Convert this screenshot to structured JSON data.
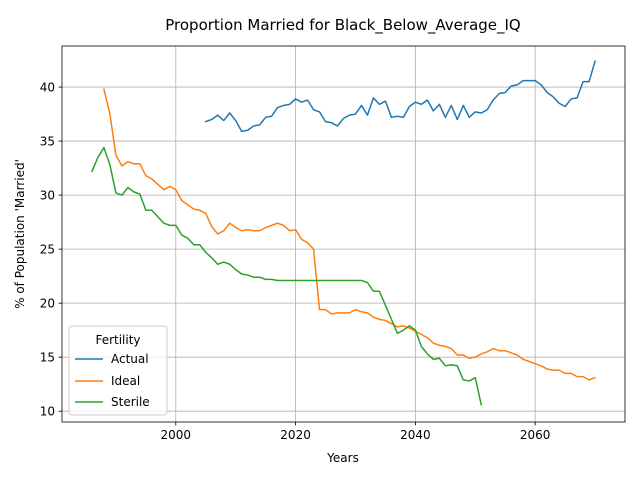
{
  "chart_data": {
    "type": "line",
    "title": "Proportion Married for Black_Below_Average_IQ",
    "xlabel": "Years",
    "ylabel": "% of Population 'Married'",
    "xlim": [
      1981,
      2075
    ],
    "ylim": [
      9.0,
      43.8
    ],
    "xticks": [
      2000,
      2020,
      2040,
      2060
    ],
    "yticks": [
      10,
      15,
      20,
      25,
      30,
      35,
      40
    ],
    "grid": true,
    "legend": {
      "title": "Fertility",
      "placement": "lower-left"
    },
    "series": [
      {
        "name": "Actual",
        "color": "#1f77b4",
        "points": [
          [
            2005,
            36.8
          ],
          [
            2006,
            37.0
          ],
          [
            2007,
            37.4
          ],
          [
            2008,
            36.9
          ],
          [
            2009,
            37.6
          ],
          [
            2010,
            36.9
          ],
          [
            2011,
            35.9
          ],
          [
            2012,
            36.0
          ],
          [
            2013,
            36.4
          ],
          [
            2014,
            36.5
          ],
          [
            2015,
            37.2
          ],
          [
            2016,
            37.3
          ],
          [
            2017,
            38.1
          ],
          [
            2018,
            38.3
          ],
          [
            2019,
            38.4
          ],
          [
            2020,
            38.9
          ],
          [
            2021,
            38.6
          ],
          [
            2022,
            38.8
          ],
          [
            2023,
            37.9
          ],
          [
            2024,
            37.7
          ],
          [
            2025,
            36.8
          ],
          [
            2026,
            36.7
          ],
          [
            2027,
            36.4
          ],
          [
            2028,
            37.1
          ],
          [
            2029,
            37.4
          ],
          [
            2030,
            37.5
          ],
          [
            2031,
            38.3
          ],
          [
            2032,
            37.4
          ],
          [
            2033,
            39.0
          ],
          [
            2034,
            38.4
          ],
          [
            2035,
            38.7
          ],
          [
            2036,
            37.2
          ],
          [
            2037,
            37.3
          ],
          [
            2038,
            37.2
          ],
          [
            2039,
            38.2
          ],
          [
            2040,
            38.6
          ],
          [
            2041,
            38.4
          ],
          [
            2042,
            38.8
          ],
          [
            2043,
            37.8
          ],
          [
            2044,
            38.4
          ],
          [
            2045,
            37.2
          ],
          [
            2046,
            38.3
          ],
          [
            2047,
            37.0
          ],
          [
            2048,
            38.3
          ],
          [
            2049,
            37.2
          ],
          [
            2050,
            37.7
          ],
          [
            2051,
            37.6
          ],
          [
            2052,
            37.9
          ],
          [
            2053,
            38.8
          ],
          [
            2054,
            39.4
          ],
          [
            2055,
            39.5
          ],
          [
            2056,
            40.1
          ],
          [
            2057,
            40.2
          ],
          [
            2058,
            40.6
          ],
          [
            2059,
            40.6
          ],
          [
            2060,
            40.6
          ],
          [
            2061,
            40.2
          ],
          [
            2062,
            39.5
          ],
          [
            2063,
            39.1
          ],
          [
            2064,
            38.5
          ],
          [
            2065,
            38.2
          ],
          [
            2066,
            38.9
          ],
          [
            2067,
            39.0
          ],
          [
            2068,
            40.5
          ],
          [
            2069,
            40.5
          ],
          [
            2070,
            42.4
          ]
        ]
      },
      {
        "name": "Ideal",
        "color": "#ff7f0e",
        "points": [
          [
            1988,
            39.8
          ],
          [
            1989,
            37.5
          ],
          [
            1990,
            33.7
          ],
          [
            1991,
            32.7
          ],
          [
            1992,
            33.1
          ],
          [
            1993,
            32.9
          ],
          [
            1994,
            32.9
          ],
          [
            1995,
            31.8
          ],
          [
            1996,
            31.5
          ],
          [
            1997,
            31.0
          ],
          [
            1998,
            30.5
          ],
          [
            1999,
            30.8
          ],
          [
            2000,
            30.5
          ],
          [
            2001,
            29.5
          ],
          [
            2002,
            29.1
          ],
          [
            2003,
            28.7
          ],
          [
            2004,
            28.6
          ],
          [
            2005,
            28.3
          ],
          [
            2006,
            27.1
          ],
          [
            2007,
            26.4
          ],
          [
            2008,
            26.7
          ],
          [
            2009,
            27.4
          ],
          [
            2010,
            27.0
          ],
          [
            2011,
            26.7
          ],
          [
            2012,
            26.8
          ],
          [
            2013,
            26.7
          ],
          [
            2014,
            26.7
          ],
          [
            2015,
            27.0
          ],
          [
            2016,
            27.2
          ],
          [
            2017,
            27.4
          ],
          [
            2018,
            27.2
          ],
          [
            2019,
            26.7
          ],
          [
            2020,
            26.8
          ],
          [
            2021,
            25.9
          ],
          [
            2022,
            25.6
          ],
          [
            2023,
            25.0
          ],
          [
            2024,
            19.4
          ],
          [
            2025,
            19.4
          ],
          [
            2026,
            19.0
          ],
          [
            2027,
            19.1
          ],
          [
            2028,
            19.1
          ],
          [
            2029,
            19.1
          ],
          [
            2030,
            19.4
          ],
          [
            2031,
            19.2
          ],
          [
            2032,
            19.1
          ],
          [
            2033,
            18.7
          ],
          [
            2034,
            18.5
          ],
          [
            2035,
            18.4
          ],
          [
            2036,
            18.1
          ],
          [
            2037,
            17.8
          ],
          [
            2038,
            17.9
          ],
          [
            2039,
            17.7
          ],
          [
            2040,
            17.4
          ],
          [
            2041,
            17.1
          ],
          [
            2042,
            16.8
          ],
          [
            2043,
            16.3
          ],
          [
            2044,
            16.1
          ],
          [
            2045,
            16.0
          ],
          [
            2046,
            15.8
          ],
          [
            2047,
            15.2
          ],
          [
            2048,
            15.2
          ],
          [
            2049,
            14.9
          ],
          [
            2050,
            15.0
          ],
          [
            2051,
            15.3
          ],
          [
            2052,
            15.5
          ],
          [
            2053,
            15.8
          ],
          [
            2054,
            15.6
          ],
          [
            2055,
            15.6
          ],
          [
            2056,
            15.4
          ],
          [
            2057,
            15.2
          ],
          [
            2058,
            14.8
          ],
          [
            2059,
            14.6
          ],
          [
            2060,
            14.4
          ],
          [
            2061,
            14.2
          ],
          [
            2062,
            13.9
          ],
          [
            2063,
            13.8
          ],
          [
            2064,
            13.8
          ],
          [
            2065,
            13.5
          ],
          [
            2066,
            13.5
          ],
          [
            2067,
            13.2
          ],
          [
            2068,
            13.2
          ],
          [
            2069,
            12.9
          ],
          [
            2070,
            13.1
          ]
        ]
      },
      {
        "name": "Sterile",
        "color": "#2ca02c",
        "points": [
          [
            1986,
            32.2
          ],
          [
            1987,
            33.5
          ],
          [
            1988,
            34.4
          ],
          [
            1989,
            32.8
          ],
          [
            1990,
            30.2
          ],
          [
            1991,
            30.0
          ],
          [
            1992,
            30.7
          ],
          [
            1993,
            30.3
          ],
          [
            1994,
            30.1
          ],
          [
            1995,
            28.6
          ],
          [
            1996,
            28.6
          ],
          [
            1997,
            28.0
          ],
          [
            1998,
            27.4
          ],
          [
            1999,
            27.2
          ],
          [
            2000,
            27.2
          ],
          [
            2001,
            26.3
          ],
          [
            2002,
            26.0
          ],
          [
            2003,
            25.4
          ],
          [
            2004,
            25.4
          ],
          [
            2005,
            24.7
          ],
          [
            2006,
            24.2
          ],
          [
            2007,
            23.6
          ],
          [
            2008,
            23.8
          ],
          [
            2009,
            23.6
          ],
          [
            2010,
            23.1
          ],
          [
            2011,
            22.7
          ],
          [
            2012,
            22.6
          ],
          [
            2013,
            22.4
          ],
          [
            2014,
            22.4
          ],
          [
            2015,
            22.2
          ],
          [
            2016,
            22.2
          ],
          [
            2017,
            22.1
          ],
          [
            2018,
            22.1
          ],
          [
            2019,
            22.1
          ],
          [
            2020,
            22.1
          ],
          [
            2021,
            22.1
          ],
          [
            2022,
            22.1
          ],
          [
            2023,
            22.1
          ],
          [
            2024,
            22.1
          ],
          [
            2025,
            22.1
          ],
          [
            2026,
            22.1
          ],
          [
            2027,
            22.1
          ],
          [
            2028,
            22.1
          ],
          [
            2029,
            22.1
          ],
          [
            2030,
            22.1
          ],
          [
            2031,
            22.1
          ],
          [
            2032,
            21.9
          ],
          [
            2033,
            21.1
          ],
          [
            2034,
            21.1
          ],
          [
            2035,
            19.8
          ],
          [
            2036,
            18.5
          ],
          [
            2037,
            17.2
          ],
          [
            2038,
            17.5
          ],
          [
            2039,
            17.9
          ],
          [
            2040,
            17.5
          ],
          [
            2041,
            16.0
          ],
          [
            2042,
            15.3
          ],
          [
            2043,
            14.8
          ],
          [
            2044,
            14.9
          ],
          [
            2045,
            14.2
          ],
          [
            2046,
            14.3
          ],
          [
            2047,
            14.2
          ],
          [
            2048,
            12.9
          ],
          [
            2049,
            12.8
          ],
          [
            2050,
            13.1
          ],
          [
            2051,
            10.6
          ]
        ]
      }
    ]
  }
}
